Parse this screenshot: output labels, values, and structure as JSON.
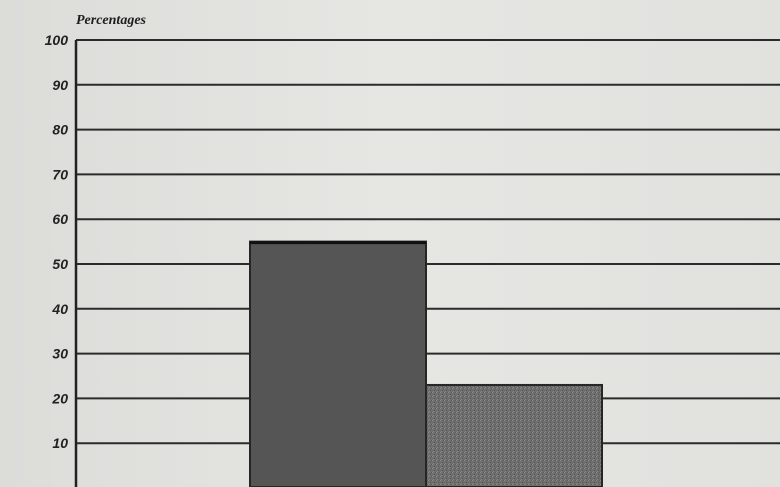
{
  "chart_data": {
    "type": "bar",
    "title": "",
    "xlabel": "",
    "ylabel": "Percentages",
    "ylim": [
      0,
      100
    ],
    "yticks": [
      10,
      20,
      30,
      40,
      50,
      60,
      70,
      80,
      90,
      100
    ],
    "grid": true,
    "categories": [
      "",
      ""
    ],
    "values": [
      55,
      23
    ],
    "bar_colors": [
      "#555555",
      "#707070"
    ],
    "bar_patterns": [
      "solid",
      "stippled"
    ]
  }
}
